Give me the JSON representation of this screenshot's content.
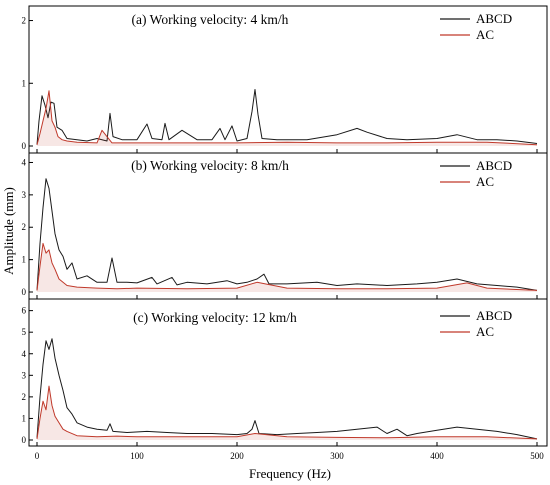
{
  "figure": {
    "xlabel": "Frequency (Hz)",
    "ylabel": "Amplitude (mm)"
  },
  "colors": {
    "ABCD": "#1a1a1a",
    "AC": "#c0392b"
  },
  "chart_data": [
    {
      "type": "line",
      "title": "(a) Working velocity: 4 km/h",
      "xlabel": "Frequency (Hz)",
      "ylabel": "Amplitude (mm)",
      "xlim": [
        0,
        500
      ],
      "ylim": [
        0,
        2.2
      ],
      "xticks": [
        0,
        100,
        200,
        300,
        400,
        500
      ],
      "yticks": [
        0,
        1,
        2
      ],
      "legend": "top-right",
      "grid": false,
      "series": [
        {
          "name": "ABCD",
          "x": [
            0,
            2,
            5,
            8,
            11,
            14,
            17,
            20,
            25,
            30,
            40,
            50,
            60,
            70,
            73,
            76,
            85,
            100,
            110,
            115,
            125,
            128,
            132,
            145,
            160,
            175,
            183,
            188,
            195,
            200,
            210,
            215,
            218,
            221,
            225,
            240,
            270,
            300,
            320,
            330,
            350,
            370,
            400,
            420,
            440,
            460,
            480,
            500
          ],
          "y": [
            0.02,
            0.4,
            0.8,
            0.65,
            0.45,
            0.7,
            0.68,
            0.3,
            0.25,
            0.12,
            0.1,
            0.08,
            0.12,
            0.08,
            0.52,
            0.15,
            0.1,
            0.1,
            0.35,
            0.12,
            0.1,
            0.36,
            0.1,
            0.25,
            0.1,
            0.1,
            0.28,
            0.1,
            0.32,
            0.08,
            0.12,
            0.55,
            0.9,
            0.5,
            0.12,
            0.1,
            0.1,
            0.18,
            0.28,
            0.22,
            0.12,
            0.1,
            0.12,
            0.18,
            0.1,
            0.1,
            0.08,
            0.04
          ]
        },
        {
          "name": "AC",
          "x": [
            0,
            3,
            6,
            9,
            12,
            15,
            18,
            21,
            25,
            30,
            40,
            60,
            65,
            75,
            100,
            150,
            200,
            250,
            300,
            350,
            400,
            450,
            500
          ],
          "y": [
            0.02,
            0.2,
            0.4,
            0.6,
            0.88,
            0.4,
            0.3,
            0.15,
            0.1,
            0.08,
            0.06,
            0.05,
            0.25,
            0.05,
            0.05,
            0.05,
            0.05,
            0.06,
            0.05,
            0.05,
            0.06,
            0.06,
            0.02
          ]
        }
      ]
    },
    {
      "type": "line",
      "title": "(b) Working velocity: 8 km/h",
      "xlabel": "Frequency (Hz)",
      "ylabel": "Amplitude (mm)",
      "xlim": [
        0,
        500
      ],
      "ylim": [
        0,
        4.2
      ],
      "xticks": [
        0,
        100,
        200,
        300,
        400,
        500
      ],
      "yticks": [
        0,
        1,
        2,
        3,
        4
      ],
      "legend": "top-right",
      "grid": false,
      "series": [
        {
          "name": "ABCD",
          "x": [
            0,
            3,
            6,
            9,
            12,
            15,
            18,
            22,
            26,
            30,
            35,
            40,
            50,
            60,
            70,
            75,
            80,
            90,
            100,
            115,
            120,
            135,
            140,
            150,
            170,
            190,
            200,
            210,
            220,
            227,
            232,
            250,
            280,
            300,
            320,
            350,
            380,
            400,
            420,
            440,
            460,
            480,
            500
          ],
          "y": [
            0.05,
            1.5,
            2.6,
            3.5,
            3.2,
            2.5,
            1.8,
            1.3,
            1.1,
            0.7,
            0.9,
            0.4,
            0.5,
            0.3,
            0.3,
            1.05,
            0.3,
            0.3,
            0.28,
            0.45,
            0.25,
            0.45,
            0.22,
            0.3,
            0.25,
            0.35,
            0.25,
            0.3,
            0.4,
            0.55,
            0.25,
            0.25,
            0.3,
            0.2,
            0.25,
            0.2,
            0.25,
            0.3,
            0.4,
            0.25,
            0.2,
            0.15,
            0.05
          ]
        },
        {
          "name": "AC",
          "x": [
            0,
            3,
            6,
            9,
            12,
            15,
            18,
            22,
            26,
            30,
            40,
            60,
            80,
            100,
            150,
            200,
            220,
            250,
            300,
            350,
            400,
            430,
            450,
            500
          ],
          "y": [
            0.05,
            0.8,
            1.5,
            1.2,
            1.3,
            0.9,
            0.7,
            0.4,
            0.3,
            0.2,
            0.15,
            0.12,
            0.1,
            0.12,
            0.1,
            0.12,
            0.3,
            0.12,
            0.1,
            0.1,
            0.12,
            0.28,
            0.12,
            0.05
          ]
        }
      ]
    },
    {
      "type": "line",
      "title": "(c) Working velocity: 12 km/h",
      "xlabel": "Frequency (Hz)",
      "ylabel": "Amplitude (mm)",
      "xlim": [
        0,
        500
      ],
      "ylim": [
        0,
        6.4
      ],
      "xticks": [
        0,
        100,
        200,
        300,
        400,
        500
      ],
      "yticks": [
        0,
        1,
        2,
        3,
        4,
        5,
        6
      ],
      "legend": "top-right",
      "grid": false,
      "series": [
        {
          "name": "ABCD",
          "x": [
            0,
            3,
            6,
            9,
            12,
            15,
            18,
            22,
            26,
            30,
            35,
            40,
            50,
            60,
            70,
            73,
            76,
            90,
            110,
            130,
            150,
            175,
            200,
            210,
            215,
            218,
            222,
            240,
            260,
            280,
            300,
            320,
            340,
            350,
            360,
            370,
            380,
            400,
            420,
            440,
            460,
            480,
            500
          ],
          "y": [
            0.1,
            2.0,
            3.5,
            4.6,
            4.2,
            4.7,
            3.8,
            3.0,
            2.3,
            1.5,
            1.2,
            0.8,
            0.6,
            0.5,
            0.45,
            0.75,
            0.4,
            0.35,
            0.4,
            0.35,
            0.3,
            0.3,
            0.25,
            0.3,
            0.5,
            0.9,
            0.3,
            0.25,
            0.3,
            0.35,
            0.4,
            0.5,
            0.6,
            0.3,
            0.5,
            0.2,
            0.3,
            0.45,
            0.6,
            0.5,
            0.4,
            0.25,
            0.05
          ]
        },
        {
          "name": "AC",
          "x": [
            0,
            3,
            6,
            9,
            12,
            15,
            18,
            22,
            26,
            30,
            40,
            60,
            80,
            100,
            150,
            200,
            218,
            250,
            300,
            350,
            400,
            450,
            500
          ],
          "y": [
            0.05,
            1.0,
            1.8,
            1.4,
            2.5,
            1.6,
            1.1,
            0.8,
            0.5,
            0.4,
            0.2,
            0.15,
            0.18,
            0.15,
            0.15,
            0.15,
            0.3,
            0.15,
            0.12,
            0.1,
            0.15,
            0.15,
            0.05
          ]
        }
      ]
    }
  ]
}
